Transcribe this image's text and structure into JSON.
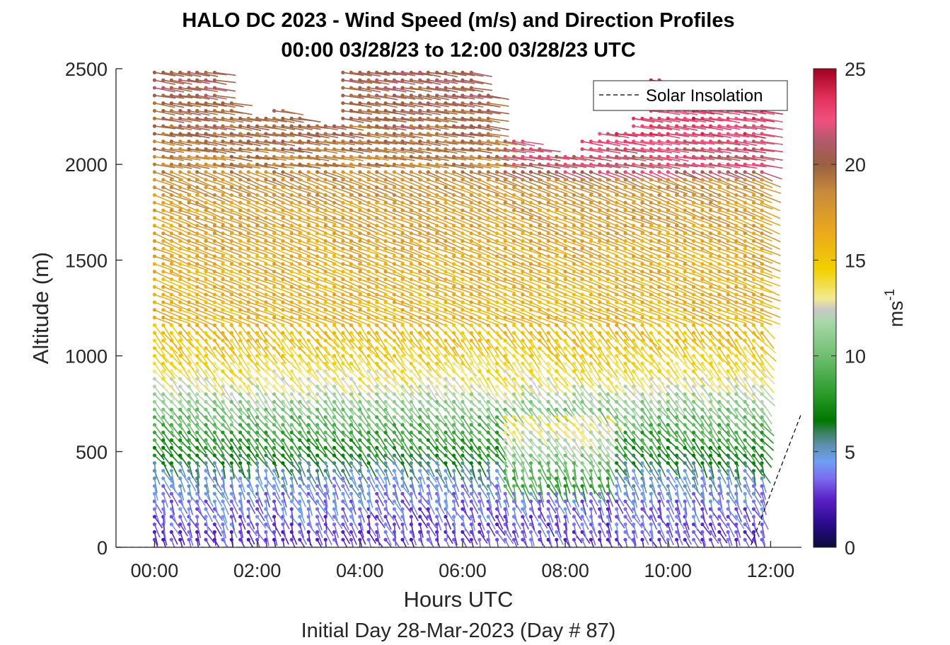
{
  "chart_data": {
    "type": "wind-barb-profile",
    "title_line1": "HALO DC 2023 - Wind Speed (m/s) and Direction Profiles",
    "title_line2": "00:00 03/28/23 to 12:00 03/28/23  UTC",
    "xlabel": "Hours UTC",
    "xlabel_sub": "Initial Day 28-Mar-2023 (Day # 87)",
    "ylabel": "Altitude (m)",
    "xlim_hours": [
      -0.75,
      12.6
    ],
    "ylim_m": [
      0,
      2500
    ],
    "x_ticks": [
      {
        "hour": 0,
        "label": "00:00"
      },
      {
        "hour": 2,
        "label": "02:00"
      },
      {
        "hour": 4,
        "label": "04:00"
      },
      {
        "hour": 6,
        "label": "06:00"
      },
      {
        "hour": 8,
        "label": "08:00"
      },
      {
        "hour": 10,
        "label": "10:00"
      },
      {
        "hour": 12,
        "label": "12:00"
      }
    ],
    "y_ticks": [
      {
        "value": 0,
        "label": "0"
      },
      {
        "value": 500,
        "label": "500"
      },
      {
        "value": 1000,
        "label": "1000"
      },
      {
        "value": 1500,
        "label": "1500"
      },
      {
        "value": 2000,
        "label": "2000"
      },
      {
        "value": 2500,
        "label": "2500"
      }
    ],
    "colorbar": {
      "range": [
        0,
        25
      ],
      "unit_base": "ms",
      "unit_exp": "-1",
      "ticks": [
        {
          "value": 0,
          "label": "0"
        },
        {
          "value": 5,
          "label": "5"
        },
        {
          "value": 10,
          "label": "10"
        },
        {
          "value": 15,
          "label": "15"
        },
        {
          "value": 20,
          "label": "20"
        },
        {
          "value": 25,
          "label": "25"
        }
      ],
      "stops": [
        [
          0,
          "#0b0b3a"
        ],
        [
          1.2,
          "#2a0a8a"
        ],
        [
          2.5,
          "#5a20c8"
        ],
        [
          3.6,
          "#7b6cf0"
        ],
        [
          4.5,
          "#6ea0f2"
        ],
        [
          5.4,
          "#5c8ea8"
        ],
        [
          6.0,
          "#3a8060"
        ],
        [
          6.6,
          "#007800"
        ],
        [
          8.0,
          "#2a9a2a"
        ],
        [
          10.0,
          "#6fbf6f"
        ],
        [
          11.8,
          "#a8d8a8"
        ],
        [
          12.4,
          "#c8c8c8"
        ],
        [
          13.0,
          "#f2ea90"
        ],
        [
          14.5,
          "#f2d000"
        ],
        [
          16.5,
          "#eaa81c"
        ],
        [
          18.5,
          "#c88c3c"
        ],
        [
          20.0,
          "#9a6040"
        ],
        [
          21.2,
          "#b05a6a"
        ],
        [
          22.3,
          "#f05080"
        ],
        [
          23.5,
          "#e0305a"
        ],
        [
          25.0,
          "#a00020"
        ]
      ]
    },
    "legend": {
      "entries": [
        {
          "label": "Solar Insolation",
          "style": "dashed"
        }
      ],
      "location": "top-right"
    },
    "profile_times_hours": [
      0.0,
      0.17,
      0.33,
      0.5,
      0.67,
      0.83,
      1.0,
      1.17,
      1.33,
      1.5,
      1.67,
      1.83,
      2.0,
      2.17,
      2.33,
      2.5,
      2.67,
      2.83,
      3.0,
      3.17,
      3.33,
      3.5,
      3.67,
      3.83,
      4.0,
      4.17,
      4.33,
      4.5,
      4.67,
      4.83,
      5.0,
      5.17,
      5.33,
      5.5,
      5.67,
      5.83,
      6.0,
      6.17,
      6.33,
      6.5,
      6.67,
      6.83,
      7.0,
      7.17,
      7.33,
      7.5,
      7.67,
      7.83,
      8.0,
      8.17,
      8.33,
      8.5,
      8.67,
      8.83,
      9.0,
      9.17,
      9.33,
      9.5,
      9.67,
      9.83,
      10.0,
      10.17,
      10.33,
      10.5,
      10.67,
      10.83,
      11.0,
      11.17,
      11.33,
      11.5,
      11.67,
      11.83
    ],
    "profile_top_m": [
      2500,
      2500,
      2500,
      2500,
      2500,
      2500,
      2500,
      2500,
      2320,
      2320,
      2240,
      2240,
      2240,
      2240,
      2280,
      2280,
      2240,
      2240,
      2230,
      2230,
      2230,
      2230,
      2500,
      2500,
      2500,
      2500,
      2500,
      2500,
      2500,
      2500,
      2500,
      2500,
      2500,
      2500,
      2500,
      2500,
      2500,
      2500,
      2360,
      2360,
      2120,
      2120,
      2120,
      2120,
      2090,
      2090,
      2060,
      2060,
      2050,
      2050,
      2150,
      2150,
      2180,
      2180,
      2180,
      2180,
      2240,
      2240,
      2450,
      2450,
      2280,
      2280,
      2280,
      2280,
      2280,
      2280,
      2280,
      2280,
      2280,
      2280,
      2280,
      2280
    ],
    "level_spacing_m": 40,
    "lowest_level_m": 40,
    "speed_profile_m_s": [
      [
        40,
        3.0
      ],
      [
        200,
        3.6
      ],
      [
        380,
        4.8
      ],
      [
        520,
        7.5
      ],
      [
        700,
        10.0
      ],
      [
        900,
        13.5
      ],
      [
        1200,
        16.0
      ],
      [
        1500,
        16.5
      ],
      [
        1800,
        17.5
      ],
      [
        2100,
        19.5
      ],
      [
        2400,
        20.5
      ]
    ],
    "solar_insolation_hours": [
      -0.75,
      11.6,
      12.6
    ],
    "solar_insolation_altitude_m": [
      0,
      0,
      700
    ]
  }
}
